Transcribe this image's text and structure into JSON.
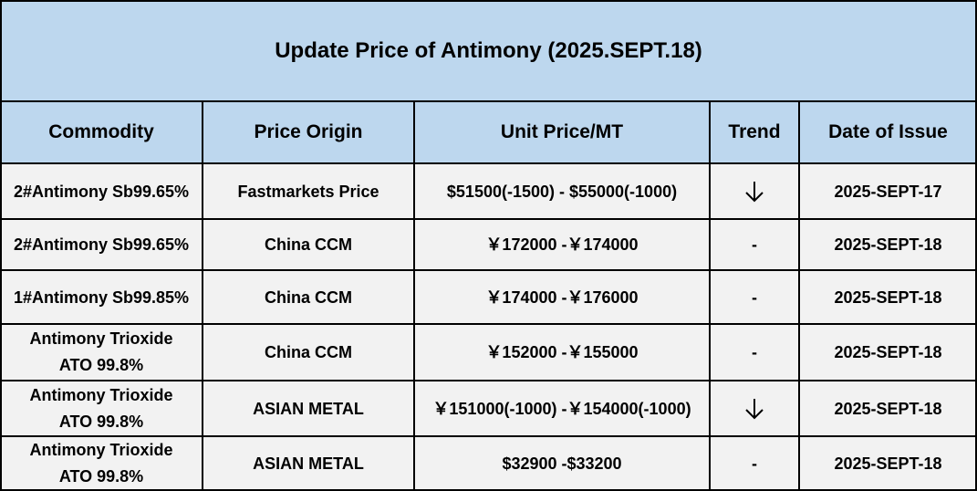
{
  "title": "Update Price of Antimony (2025.SEPT.18)",
  "headers": [
    "Commodity",
    "Price Origin",
    "Unit Price/MT",
    "Trend",
    "Date of Issue"
  ],
  "rows": [
    {
      "commodity": [
        "2#Antimony  Sb99.65%"
      ],
      "origin": "Fastmarkets Price",
      "price": "$51500(-1500)  - $55000(-1000)",
      "trend": "down",
      "date": "2025-SEPT-17"
    },
    {
      "commodity": [
        "2#Antimony  Sb99.65%"
      ],
      "origin": "China CCM",
      "price": "￥172000 -￥174000",
      "trend": "-",
      "date": "2025-SEPT-18"
    },
    {
      "commodity": [
        "1#Antimony  Sb99.85%"
      ],
      "origin": "China CCM",
      "price": "￥174000 -￥176000",
      "trend": "-",
      "date": "2025-SEPT-18"
    },
    {
      "commodity": [
        "Antimony Trioxide",
        "ATO 99.8%"
      ],
      "origin": "China CCM",
      "price": "￥152000 -￥155000",
      "trend": "-",
      "date": "2025-SEPT-18"
    },
    {
      "commodity": [
        "Antimony Trioxide",
        "ATO 99.8%"
      ],
      "origin": "ASIAN METAL",
      "price": "￥151000(-1000) -￥154000(-1000)",
      "trend": "down",
      "date": "2025-SEPT-18"
    },
    {
      "commodity": [
        "Antimony Trioxide",
        "ATO 99.8%"
      ],
      "origin": "ASIAN METAL",
      "price": "$32900 -$33200",
      "trend": "-",
      "date": "2025-SEPT-18"
    }
  ],
  "colors": {
    "header_fill": "#bdd7ee",
    "body_fill": "#f2f2f2",
    "grid": "#000000"
  }
}
